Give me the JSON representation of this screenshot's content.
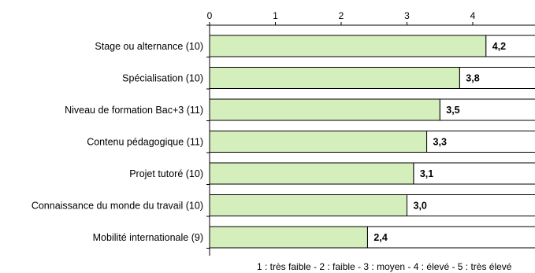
{
  "chart_data": {
    "type": "bar",
    "orientation": "horizontal",
    "categories": [
      "Stage ou alternance (10)",
      "Spécialisation (10)",
      "Niveau de formation Bac+3 (11)",
      "Contenu pédagogique (11)",
      "Projet tutoré (10)",
      "Connaissance du monde du travail (10)",
      "Mobilité internationale (9)"
    ],
    "values": [
      4.2,
      3.8,
      3.5,
      3.3,
      3.1,
      3.0,
      2.4
    ],
    "value_labels": [
      "4,2",
      "3,8",
      "3,5",
      "3,3",
      "3,1",
      "3,0",
      "2,4"
    ],
    "xlim": [
      0,
      5
    ],
    "x_ticks": [
      0,
      1,
      2,
      3,
      4
    ],
    "x_tick_labels": [
      "0",
      "1",
      "2",
      "3",
      "4"
    ],
    "axis_position": "top",
    "grid": false,
    "footnote": "1 : très faible - 2 : faible - 3 : moyen - 4 : élevé - 5 : très élevé",
    "colors": {
      "bar_fill": "#d4eebc",
      "remainder_fill": "#ffffff",
      "stroke": "#000000"
    }
  }
}
